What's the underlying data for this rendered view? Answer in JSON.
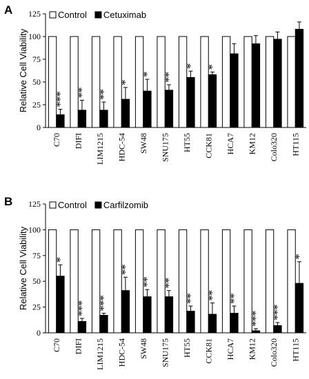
{
  "chart_data": [
    {
      "type": "bar",
      "panel": "A",
      "ylabel": "Relative Cell Viability",
      "categories": [
        "C70",
        "DIFI",
        "LIM1215",
        "HDC-54",
        "SW48",
        "SNU175",
        "HT55",
        "CCK81",
        "HCA7",
        "KM12",
        "Colo320",
        "HT115"
      ],
      "series": [
        {
          "name": "Control",
          "color": "#ffffff",
          "values": [
            100,
            100,
            100,
            100,
            100,
            100,
            100,
            100,
            100,
            100,
            100,
            100
          ]
        },
        {
          "name": "Cetuximab",
          "color": "#000000",
          "values": [
            14,
            19,
            19,
            31,
            40,
            41,
            55,
            58,
            81,
            92,
            97,
            108
          ],
          "errors": [
            6,
            11,
            9,
            13,
            13,
            6,
            7,
            3,
            11,
            9,
            8,
            8
          ],
          "annotations": [
            "***",
            "**",
            "**",
            "*",
            "*",
            "**",
            "*",
            "*",
            null,
            null,
            null,
            null
          ]
        }
      ],
      "ylim": [
        0,
        125
      ],
      "yticks": [
        0,
        25,
        50,
        75,
        100,
        125
      ],
      "legend": "top-left"
    },
    {
      "type": "bar",
      "panel": "B",
      "ylabel": "Relative Cell Viability",
      "categories": [
        "C70",
        "DIFI",
        "LIM1215",
        "HDC-54",
        "SW48",
        "SNU175",
        "HT55",
        "CCK81",
        "HCA7",
        "KM12",
        "Colo320",
        "HT115"
      ],
      "series": [
        {
          "name": "Control",
          "color": "#ffffff",
          "values": [
            100,
            100,
            100,
            100,
            100,
            100,
            100,
            100,
            100,
            100,
            100,
            100
          ]
        },
        {
          "name": "Carfilzomib",
          "color": "#000000",
          "values": [
            55,
            11,
            17,
            41,
            35,
            35,
            21,
            18,
            19,
            2,
            7,
            48
          ],
          "errors": [
            11,
            3,
            2,
            13,
            7,
            6,
            5,
            11,
            7,
            2,
            3,
            21
          ],
          "annotations": [
            "*",
            "***",
            "***",
            "**",
            "**",
            "**",
            "**",
            "**",
            "**",
            "***",
            "***",
            "*"
          ]
        }
      ],
      "ylim": [
        0,
        125
      ],
      "yticks": [
        0,
        25,
        50,
        75,
        100,
        125
      ],
      "legend": "top-left"
    }
  ]
}
